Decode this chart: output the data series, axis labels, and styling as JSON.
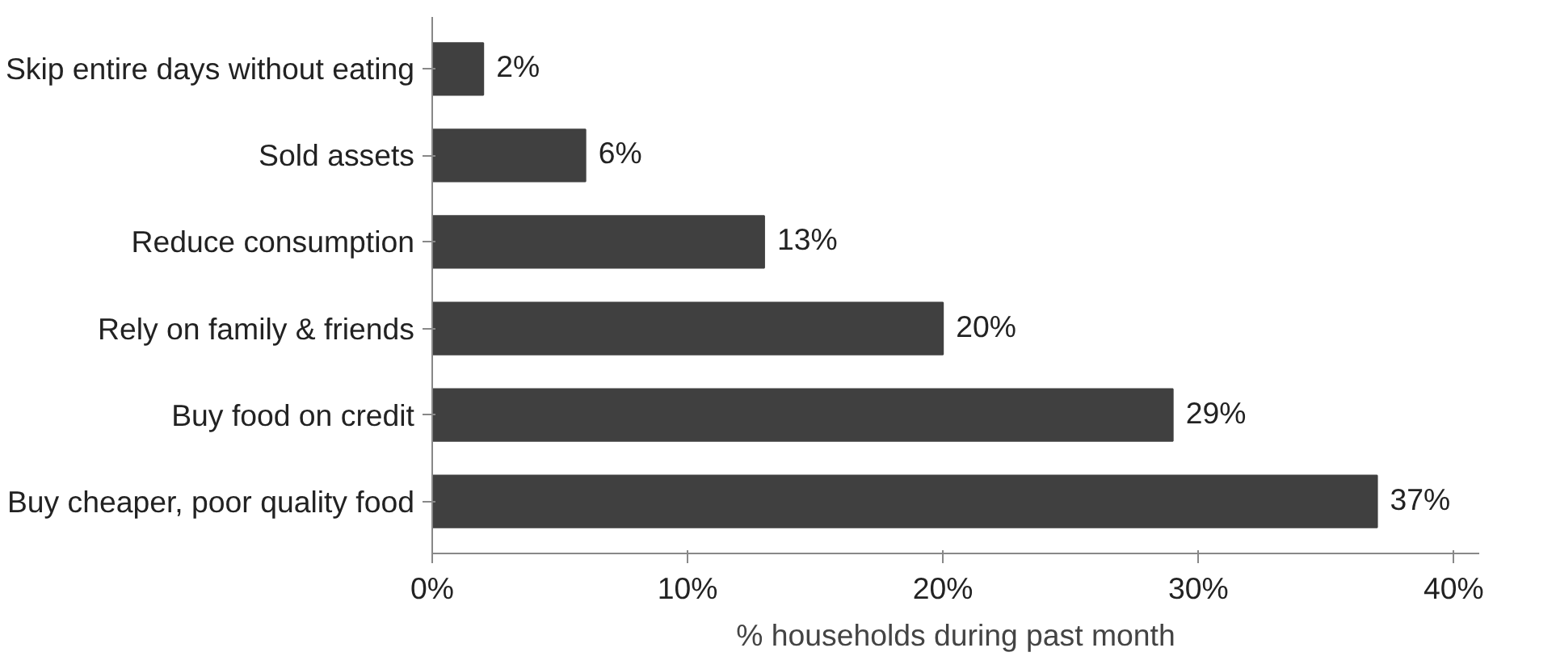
{
  "chart_data": {
    "type": "bar",
    "orientation": "horizontal",
    "xlabel": "% households during past month",
    "categories": [
      "Skip entire days without eating",
      "Sold assets",
      "Reduce consumption",
      "Rely on family & friends",
      "Buy food on credit",
      "Buy cheaper, poor quality food"
    ],
    "values": [
      2,
      6,
      13,
      20,
      29,
      37
    ],
    "color": "#404040",
    "data_labels": true,
    "value_labels": [
      "2%",
      "6%",
      "13%",
      "20%",
      "29%",
      "37%"
    ],
    "xlim": [
      0,
      41
    ],
    "xticks": [
      {
        "value": 0,
        "label": "0%"
      },
      {
        "value": 10,
        "label": "10%"
      },
      {
        "value": 20,
        "label": "20%"
      },
      {
        "value": 30,
        "label": "30%"
      },
      {
        "value": 40,
        "label": "40%"
      }
    ],
    "grid": false
  }
}
